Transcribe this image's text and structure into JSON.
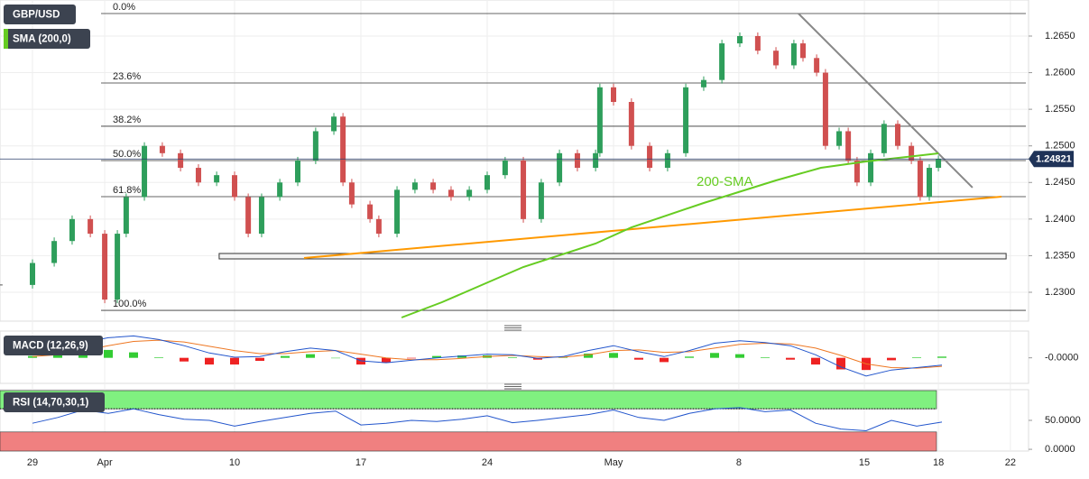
{
  "chart_data": [
    {
      "type": "candlestick",
      "title": "GBP/USD",
      "x": [
        -1.29,
        0,
        0.86,
        1.57,
        2.29,
        2.86,
        3.36,
        3.71,
        4.43,
        5.14,
        5.86,
        6.57,
        7.29,
        8,
        8.54,
        9.07,
        9.79,
        10.5,
        11.21,
        11.93,
        12.29,
        12.64,
        13.36,
        13.71,
        14.43,
        15.14,
        15.86,
        16.57,
        17.29,
        18,
        18.71,
        19.43,
        20.14,
        20.86,
        21.57,
        22.29,
        22.46,
        23,
        23.71,
        24.43,
        25.14,
        25.86,
        26.57,
        27.29,
        28,
        28.71,
        29.43,
        30.14,
        30.5,
        31.04,
        31.39,
        31.93,
        32.29,
        32.64,
        33.18,
        33.71,
        34.25,
        34.79,
        35.14,
        35.5,
        35.86
      ],
      "close": [
        1.231,
        1.234,
        1.237,
        1.24,
        1.238,
        1.229,
        1.238,
        1.243,
        1.25,
        1.249,
        1.247,
        1.245,
        1.246,
        1.243,
        1.238,
        1.243,
        1.245,
        1.248,
        1.252,
        1.254,
        1.245,
        1.242,
        1.24,
        1.238,
        1.244,
        1.245,
        1.244,
        1.243,
        1.244,
        1.246,
        1.248,
        1.24,
        1.245,
        1.249,
        1.247,
        1.249,
        1.258,
        1.256,
        1.25,
        1.247,
        1.249,
        1.258,
        1.259,
        1.264,
        1.265,
        1.263,
        1.261,
        1.264,
        1.262,
        1.26,
        1.25,
        1.252,
        1.248,
        1.245,
        1.249,
        1.253,
        1.25,
        1.248,
        1.243,
        1.247,
        1.2482
      ],
      "up_color": "#2e9e5b",
      "down_color": "#d05050",
      "sma": {
        "name": "SMA (200,0)",
        "label": "200-SMA",
        "color": "#66cc22",
        "x": [
          14.61,
          16.21,
          19.43,
          22.29,
          23.71,
          26.57,
          29.43,
          31.21,
          33,
          35.86
        ],
        "values": [
          1.22655,
          1.22864,
          1.23345,
          1.23665,
          1.23887,
          1.2422,
          1.24528,
          1.24701,
          1.24787,
          1.24898
        ]
      },
      "fib_levels": [
        {
          "label": "0.0%",
          "value": 1.26808
        },
        {
          "label": "23.6%",
          "value": 1.25859
        },
        {
          "label": "38.2%",
          "value": 1.25268
        },
        {
          "label": "50.0%",
          "value": 1.24799
        },
        {
          "label": "61.8%",
          "value": 1.24306
        },
        {
          "label": "100.0%",
          "value": 1.22753
        }
      ],
      "trend_lines": [
        {
          "color": "#888888",
          "x": [
            30.32,
            37.21
          ],
          "values": [
            1.26808,
            1.2443
          ]
        },
        {
          "color": "#ff9900",
          "x": [
            10.75,
            38.36
          ],
          "values": [
            1.23468,
            1.24306
          ]
        }
      ],
      "support_zone": {
        "x": [
          7.39,
          38.54
        ],
        "values": [
          1.2353,
          1.23456
        ]
      },
      "last_price": 1.24821,
      "xlim": [
        -1.2857,
        39.4286
      ],
      "ylim": [
        1.22618,
        1.26931
      ],
      "yticks": [
        {
          "value": 1.23,
          "label": "1.2300"
        },
        {
          "value": 1.235,
          "label": "1.2350"
        },
        {
          "value": 1.24,
          "label": "1.2400"
        },
        {
          "value": 1.245,
          "label": "1.2450"
        },
        {
          "value": 1.25,
          "label": "1.2500"
        },
        {
          "value": 1.255,
          "label": "1.2550"
        },
        {
          "value": 1.26,
          "label": "1.2600"
        },
        {
          "value": 1.265,
          "label": "1.2650"
        }
      ],
      "xticks": [
        {
          "value": 0,
          "label": "29"
        },
        {
          "value": 2.86,
          "label": "Apr"
        },
        {
          "value": 8,
          "label": "10"
        },
        {
          "value": 13,
          "label": "17"
        },
        {
          "value": 18,
          "label": "24"
        },
        {
          "value": 23,
          "label": "May"
        },
        {
          "value": 27.96,
          "label": "8"
        },
        {
          "value": 32.93,
          "label": "15"
        },
        {
          "value": 35.86,
          "label": "18"
        },
        {
          "value": 38.71,
          "label": "22"
        }
      ]
    },
    {
      "type": "macd",
      "title": "MACD (12,26,9)",
      "x": [
        0,
        1,
        2,
        3,
        4,
        5,
        6,
        7,
        8,
        9,
        10,
        11,
        12,
        13,
        14,
        15,
        16,
        17,
        18,
        19,
        20,
        21,
        22,
        23,
        24,
        25,
        26,
        27,
        28,
        29,
        30,
        31,
        32,
        33,
        34,
        35,
        36
      ],
      "macd": {
        "color": "#2255cc",
        "values": [
          0.0005,
          0.0012,
          0.0025,
          0.0033,
          0.0036,
          0.003,
          0.002,
          0.0008,
          0.0001,
          0.0002,
          0.001,
          0.0016,
          0.0012,
          -0.0005,
          -0.0008,
          -0.0004,
          0,
          0.0003,
          0.0006,
          0.0005,
          -0.0001,
          0.0002,
          0.0012,
          0.002,
          0.001,
          0.0002,
          0.0012,
          0.0024,
          0.0028,
          0.0025,
          0.002,
          0.0005,
          -0.0015,
          -0.003,
          -0.002,
          -0.0016,
          -0.0012
        ]
      },
      "signal": {
        "color": "#ee7722",
        "values": [
          0.0002,
          0.0005,
          0.0012,
          0.002,
          0.0027,
          0.0029,
          0.0026,
          0.0019,
          0.0012,
          0.0007,
          0.0007,
          0.001,
          0.0012,
          0.0006,
          0,
          -0.0003,
          -0.0003,
          -0.0001,
          0.0002,
          0.0004,
          0.0002,
          0.0001,
          0.0005,
          0.0012,
          0.0013,
          0.0009,
          0.001,
          0.0016,
          0.0022,
          0.0024,
          0.0023,
          0.0016,
          0.0004,
          -0.001,
          -0.0016,
          -0.0017,
          -0.0014
        ]
      },
      "histogram": {
        "up_color": "#33cc33",
        "down_color": "#ee2222",
        "values": [
          0.0003,
          0.0007,
          0.0013,
          0.0013,
          0.0009,
          0.0001,
          -0.0006,
          -0.0011,
          -0.0011,
          -0.0005,
          0.0003,
          0.0006,
          0,
          -0.0011,
          -0.0008,
          -0.0001,
          0.0003,
          0.0004,
          0.0004,
          0.0001,
          -0.0003,
          0.0001,
          0.0007,
          0.0008,
          -0.0003,
          -0.0007,
          0.0002,
          0.0008,
          0.0006,
          0.0001,
          -0.0003,
          -0.0011,
          -0.0019,
          -0.002,
          -0.0004,
          0.0001,
          0.0002
        ]
      },
      "xlim": [
        -1.2857,
        39.4286
      ],
      "ylim": [
        -0.0042,
        0.0044
      ],
      "yticks": [
        {
          "value": 0,
          "label": "-0.0000"
        }
      ]
    },
    {
      "type": "rsi",
      "title": "RSI (14,70,30,1)",
      "x": [
        0,
        1,
        2,
        3,
        4,
        5,
        6,
        7,
        8,
        9,
        10,
        11,
        12,
        13,
        14,
        15,
        16,
        17,
        18,
        19,
        20,
        21,
        22,
        23,
        24,
        25,
        26,
        27,
        28,
        29,
        30,
        31,
        32,
        33,
        34,
        35,
        36
      ],
      "values": [
        45,
        55,
        68,
        62,
        70,
        60,
        52,
        50,
        40,
        48,
        55,
        62,
        66,
        42,
        45,
        50,
        48,
        52,
        58,
        46,
        50,
        55,
        60,
        68,
        55,
        50,
        62,
        70,
        72,
        65,
        68,
        45,
        35,
        32,
        50,
        40,
        47
      ],
      "color": "#2255cc",
      "overbought": 70,
      "oversold": 30,
      "overbought_color": "#80f080",
      "oversold_color": "#f08080",
      "xlim": [
        -1.2857,
        39.4286
      ],
      "ylim": [
        -3,
        103
      ],
      "yticks": [
        {
          "value": 0,
          "label": "0.0000"
        },
        {
          "value": 50,
          "label": "50.0000"
        }
      ]
    }
  ]
}
